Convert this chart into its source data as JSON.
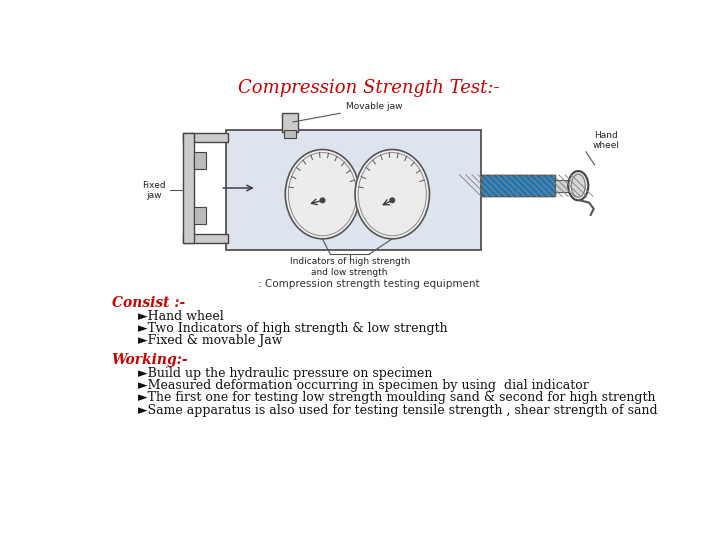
{
  "title": "Compression Strength Test:-",
  "title_color": "#cc0000",
  "title_fontsize": 13,
  "caption": ": Compression strength testing equipment",
  "consist_label": "Consist :-",
  "consist_items": [
    "Hand wheel",
    "Two Indicators of high strength & low strength",
    "Fixed & movable Jaw"
  ],
  "working_label": "Working:-",
  "working_items": [
    "Build up the hydraulic pressure on specimen",
    "Measured deformation occurring in specimen by using  dial indicator",
    "The first one for testing low strength moulding sand & second for high strength",
    "Same apparatus is also used for testing tensile strength , shear strength of sand"
  ],
  "red_color": "#cc0000",
  "black_color": "#111111",
  "bg_color": "#ffffff",
  "bullet": "►"
}
